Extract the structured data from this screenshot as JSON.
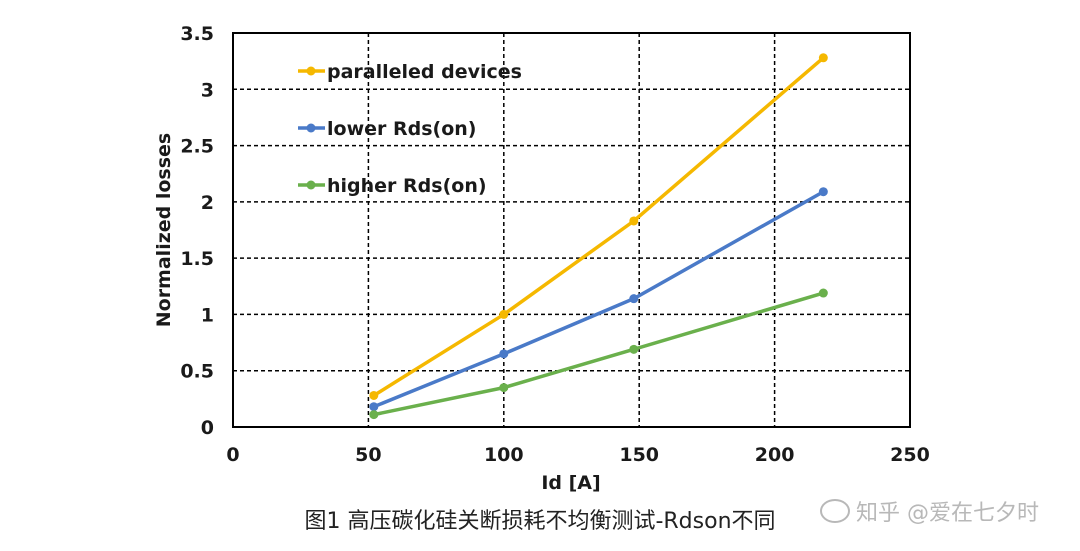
{
  "chart_data": {
    "type": "line",
    "xlabel": "Id [A]",
    "ylabel": "Normalized losses",
    "xlim": [
      0,
      250
    ],
    "ylim": [
      0,
      3.5
    ],
    "xticks": [
      "0",
      "50",
      "100",
      "150",
      "200",
      "250"
    ],
    "yticks": [
      "0",
      "0.5",
      "1",
      "1.5",
      "2",
      "2.5",
      "3",
      "3.5"
    ],
    "grid": true,
    "legend_position": "top-left",
    "series": [
      {
        "name": "paralleled devices",
        "color": "#f5b800",
        "x": [
          52,
          100,
          148,
          218
        ],
        "y": [
          0.28,
          1.0,
          1.83,
          3.28
        ]
      },
      {
        "name": "lower Rds(on)",
        "color": "#4a7ac8",
        "x": [
          52,
          100,
          148,
          218
        ],
        "y": [
          0.18,
          0.65,
          1.14,
          2.09
        ]
      },
      {
        "name": "higher Rds(on)",
        "color": "#6ab04c",
        "x": [
          52,
          100,
          148,
          218
        ],
        "y": [
          0.11,
          0.35,
          0.69,
          1.19
        ]
      }
    ]
  },
  "caption": "图1 高压碳化硅关断损耗不均衡测试-Rdson不同",
  "watermark": "知乎 @爱在七夕时"
}
